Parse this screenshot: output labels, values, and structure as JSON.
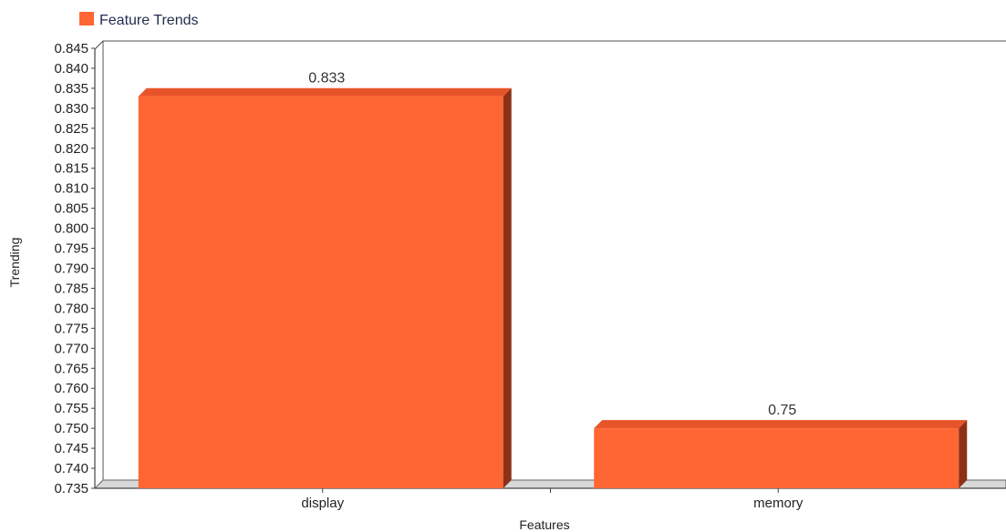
{
  "chart_data": {
    "type": "bar",
    "categories": [
      "display",
      "memory"
    ],
    "series": [
      {
        "name": "Feature Trends",
        "values": [
          0.833,
          0.75
        ],
        "color": "#ff6633"
      }
    ],
    "value_labels": [
      "0.833",
      "0.75"
    ],
    "xlabel": "Features",
    "ylabel": "Trending",
    "ylim": [
      0.735,
      0.845
    ],
    "ytick_step": 0.005,
    "y_ticks": [
      "0.735",
      "0.740",
      "0.745",
      "0.750",
      "0.755",
      "0.760",
      "0.765",
      "0.770",
      "0.775",
      "0.780",
      "0.785",
      "0.790",
      "0.795",
      "0.800",
      "0.805",
      "0.810",
      "0.815",
      "0.820",
      "0.825",
      "0.830",
      "0.835",
      "0.840",
      "0.845"
    ],
    "legend": {
      "position": "top-left",
      "label": "Feature Trends"
    },
    "grid": false,
    "style": "3d",
    "colors": {
      "bar_face": "#ff6633",
      "bar_top": "#e8542a",
      "bar_side": "#8c3117",
      "floor": "#d8d8d8"
    }
  }
}
